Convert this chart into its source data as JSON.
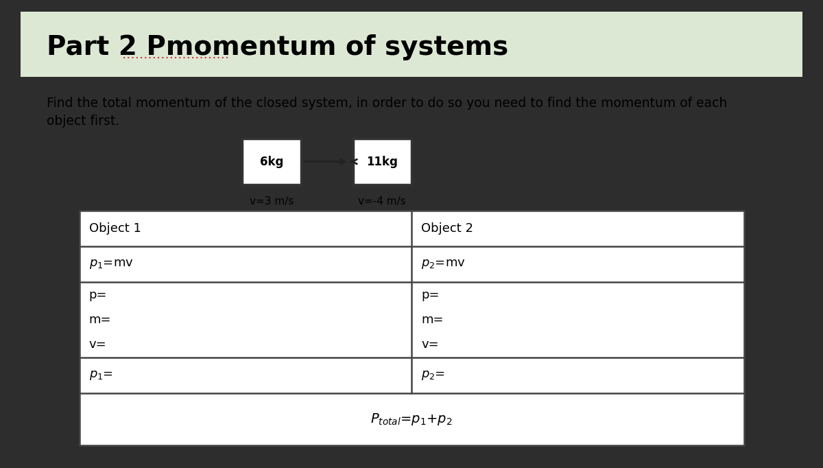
{
  "title": "Part 2 Pmomentum of systems",
  "description_line1": "Find the total momentum of the closed system, in order to do so you need to find the momentum of each",
  "description_line2": "object first.",
  "obj1_mass": "6kg",
  "obj2_mass": "11kg",
  "obj1_vel": "v=3 m/s",
  "obj2_vel": "v=-4 m/s",
  "bg_outer": "#2d2d2d",
  "bg_inner": "#ffffff",
  "bg_title": "#dce8d4",
  "border_color": "#444444",
  "underline_color": "#cc3333",
  "title_fontsize": 28,
  "desc_fontsize": 13.5,
  "cell_fontsize": 13,
  "arrow_color": "#222222",
  "box_border": "#333333"
}
